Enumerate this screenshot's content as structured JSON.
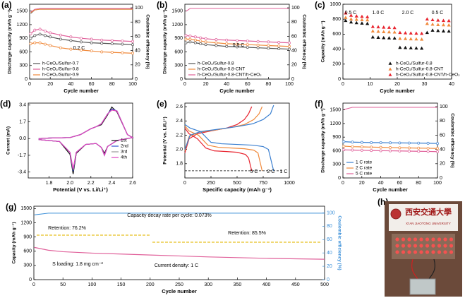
{
  "chart_data": [
    {
      "type": "line",
      "label": "(a)",
      "xlabel": "Cycle number",
      "ylabel": "Discharge capacity (mAh g⁻¹)",
      "y2label": "Coulombic efficiency (%)",
      "xlim": [
        0,
        100
      ],
      "xticks": [
        0,
        20,
        40,
        60,
        80,
        100
      ],
      "ylim": [
        0,
        1650
      ],
      "yticks": [
        0,
        300,
        600,
        900,
        1200,
        1500
      ],
      "y2lim": [
        0,
        105
      ],
      "y2ticks": [
        0,
        20,
        40,
        60,
        80,
        100
      ],
      "legend": "lower left",
      "annotations": [
        "0.2 C"
      ],
      "x": [
        1,
        5,
        10,
        15,
        20,
        30,
        40,
        50,
        60,
        70,
        80,
        90,
        100
      ],
      "series": [
        {
          "name": "h-CeO₂/Sulfur-0.7",
          "color": "#555555",
          "marker": "circle",
          "values": [
            900,
            960,
            990,
            960,
            930,
            880,
            850,
            820,
            800,
            790,
            780,
            770,
            760
          ]
        },
        {
          "name": "h-CeO₂/Sulfur-0.8",
          "color": "#e0609a",
          "marker": "circle",
          "values": [
            1000,
            1080,
            1100,
            1060,
            1020,
            970,
            930,
            900,
            880,
            860,
            850,
            840,
            830
          ]
        },
        {
          "name": "h-CeO₂/Sulfur-0.9",
          "color": "#f08a3c",
          "marker": "circle",
          "values": [
            780,
            800,
            800,
            770,
            740,
            690,
            660,
            640,
            620,
            600,
            590,
            580,
            570
          ]
        },
        {
          "color": "#555555",
          "axis": "y2",
          "values": [
            92,
            97,
            98,
            98,
            98,
            98,
            98,
            98,
            98,
            98,
            98,
            98,
            98
          ]
        },
        {
          "color": "#e0609a",
          "axis": "y2",
          "values": [
            94,
            98,
            99,
            99,
            99,
            99,
            99,
            99,
            99,
            99,
            99,
            99,
            99
          ]
        },
        {
          "color": "#f08a3c",
          "axis": "y2",
          "values": [
            93,
            97,
            98,
            98,
            98,
            98,
            98,
            98,
            98,
            98,
            98,
            98,
            98
          ]
        }
      ]
    },
    {
      "type": "line",
      "label": "(b)",
      "xlabel": "Cycle number",
      "ylabel": "Discharge capacity (mAh g⁻¹)",
      "y2label": "Coulombic efficiency (%)",
      "xlim": [
        0,
        100
      ],
      "xticks": [
        0,
        20,
        40,
        60,
        80,
        100
      ],
      "ylim": [
        0,
        1650
      ],
      "yticks": [
        0,
        300,
        600,
        900,
        1200,
        1500
      ],
      "y2lim": [
        0,
        105
      ],
      "y2ticks": [
        0,
        20,
        40,
        60,
        80,
        100
      ],
      "legend": "lower left",
      "annotations": [
        "0.5 C"
      ],
      "x": [
        1,
        5,
        10,
        15,
        20,
        30,
        40,
        50,
        60,
        70,
        80,
        90,
        100
      ],
      "series": [
        {
          "name": "h-CeO₂/Sulfur-0.8",
          "color": "#555555",
          "marker": "circle",
          "values": [
            800,
            820,
            800,
            780,
            760,
            740,
            720,
            710,
            700,
            690,
            680,
            670,
            660
          ]
        },
        {
          "name": "h-CeO₂/Sulfur-0.8-CNT",
          "color": "#f08a3c",
          "marker": "circle",
          "values": [
            880,
            880,
            860,
            840,
            820,
            800,
            780,
            770,
            760,
            750,
            740,
            730,
            720
          ]
        },
        {
          "name": "h-CeO₂/Sulfur-0.8-CNT/h-CeO₂",
          "color": "#e0609a",
          "marker": "circle",
          "values": [
            960,
            950,
            930,
            910,
            890,
            870,
            860,
            850,
            840,
            830,
            820,
            810,
            800
          ]
        },
        {
          "color": "#e0609a",
          "axis": "y2",
          "values": [
            95,
            99,
            99,
            99,
            99,
            99,
            99,
            99,
            99,
            99,
            99,
            99,
            99
          ]
        }
      ]
    },
    {
      "type": "line",
      "label": "(c)",
      "xlabel": "Cycle number",
      "ylabel": "Capacity (mAh g⁻¹)",
      "xlim": [
        0,
        40
      ],
      "xticks": [
        0,
        10,
        20,
        30,
        40
      ],
      "ylim": [
        0,
        1000
      ],
      "yticks": [
        0,
        200,
        400,
        600,
        800,
        1000
      ],
      "legend": "lower right",
      "annotations": [
        "0.5 C",
        "1.0 C",
        "2.0 C",
        "0.5 C"
      ],
      "x": [
        1,
        3,
        5,
        7,
        9,
        11,
        13,
        15,
        17,
        19,
        21,
        23,
        25,
        27,
        29,
        31,
        33,
        35,
        37,
        39
      ],
      "series": [
        {
          "name": "h-CeO₂/Sulfur-0.8",
          "color": "#111111",
          "marker": "triangle",
          "values": [
            780,
            760,
            750,
            745,
            740,
            560,
            555,
            550,
            548,
            545,
            420,
            418,
            415,
            412,
            410,
            620,
            650,
            645,
            640,
            638
          ]
        },
        {
          "name": "h-CeO₂/Sulfur-0.8-CNT",
          "color": "#f08a3c",
          "marker": "triangle",
          "values": [
            820,
            800,
            795,
            790,
            788,
            640,
            635,
            630,
            628,
            625,
            540,
            538,
            535,
            533,
            530,
            740,
            730,
            725,
            722,
            720
          ]
        },
        {
          "name": "h-CeO₂/Sulfur-0.8-CNT/h-CeO₂",
          "color": "#e8242f",
          "marker": "triangle",
          "values": [
            880,
            850,
            840,
            835,
            830,
            700,
            695,
            690,
            688,
            685,
            620,
            615,
            612,
            610,
            608,
            800,
            790,
            785,
            780,
            778
          ]
        }
      ]
    },
    {
      "type": "line",
      "label": "(d)",
      "xlabel": "Potential (V vs. Li/Li⁺)",
      "ylabel": "Current (mA)",
      "xlim": [
        1.6,
        2.6
      ],
      "xticks": [
        1.8,
        {
          "value": 2,
          "label": "2.0"
        },
        2.2,
        2.4,
        2.6
      ],
      "ylim": [
        -4,
        3.6
      ],
      "yticks": [
        -3.4,
        -1.7,
        {
          "value": 0,
          "label": "0.0"
        },
        1.7,
        3.4
      ],
      "legend": "center right",
      "series": [
        {
          "name": "1st",
          "color": "#111111",
          "x": [
            1.7,
            1.9,
            2.0,
            2.03,
            2.06,
            2.15,
            2.25,
            2.3,
            2.33,
            2.36,
            2.45,
            2.55,
            2.6,
            2.55,
            2.45,
            2.4,
            2.36,
            2.3,
            2.25,
            2.2,
            2.1,
            2.0,
            1.8,
            1.7
          ],
          "values": [
            -0.1,
            -0.3,
            -1.6,
            -3.6,
            -1.5,
            -0.6,
            -0.5,
            -0.9,
            -1.5,
            -0.8,
            -0.2,
            0.0,
            0.1,
            0.4,
            2.7,
            3.2,
            2.4,
            1.4,
            1.2,
            1.0,
            0.4,
            0.1,
            0.05,
            0.0
          ]
        },
        {
          "name": "2nd",
          "color": "#3050d0",
          "x": [
            1.7,
            1.9,
            2.0,
            2.03,
            2.06,
            2.15,
            2.25,
            2.3,
            2.33,
            2.36,
            2.45,
            2.55,
            2.6,
            2.55,
            2.45,
            2.4,
            2.36,
            2.3,
            2.25,
            2.2,
            2.1,
            2.0,
            1.8,
            1.7
          ],
          "values": [
            -0.1,
            -0.3,
            -1.4,
            -3.3,
            -1.4,
            -0.6,
            -0.5,
            -0.9,
            -1.7,
            -0.8,
            -0.2,
            0.0,
            0.1,
            0.4,
            2.8,
            3.0,
            2.5,
            1.5,
            1.2,
            1.0,
            0.4,
            0.1,
            0.05,
            0.0
          ]
        },
        {
          "name": "3rd",
          "color": "#999999",
          "x": [
            1.7,
            1.9,
            2.0,
            2.03,
            2.06,
            2.15,
            2.25,
            2.3,
            2.33,
            2.36,
            2.45,
            2.55,
            2.6,
            2.55,
            2.45,
            2.4,
            2.36,
            2.3,
            2.25,
            2.2,
            2.1,
            2.0,
            1.8,
            1.7
          ],
          "values": [
            -0.1,
            -0.3,
            -1.4,
            -3.2,
            -1.4,
            -0.6,
            -0.5,
            -0.9,
            -1.7,
            -0.8,
            -0.2,
            0.0,
            0.1,
            0.4,
            2.8,
            2.9,
            2.5,
            1.5,
            1.2,
            1.0,
            0.4,
            0.1,
            0.05,
            0.0
          ]
        },
        {
          "name": "4th",
          "color": "#e040c0",
          "x": [
            1.7,
            1.9,
            2.0,
            2.03,
            2.06,
            2.15,
            2.25,
            2.3,
            2.33,
            2.36,
            2.45,
            2.55,
            2.6,
            2.55,
            2.45,
            2.4,
            2.36,
            2.3,
            2.25,
            2.2,
            2.1,
            2.0,
            1.8,
            1.7
          ],
          "values": [
            -0.1,
            -0.3,
            -1.4,
            -3.1,
            -1.4,
            -0.6,
            -0.5,
            -0.9,
            -1.7,
            -0.8,
            -0.2,
            0.0,
            0.1,
            0.4,
            2.8,
            2.9,
            2.5,
            1.5,
            1.2,
            1.0,
            0.4,
            0.1,
            0.05,
            0.0
          ]
        }
      ]
    },
    {
      "type": "line",
      "label": "(e)",
      "xlabel": "Specific capacity (mAh g⁻¹)",
      "ylabel": "Potential (V vs. Li/Li⁺)",
      "xlim": [
        0,
        1000
      ],
      "xticks": [
        0,
        250,
        500,
        750,
        1000
      ],
      "ylim": [
        1.6,
        2.65
      ],
      "yticks": [
        1.8,
        {
          "value": 2,
          "label": "2.0"
        },
        2.2,
        2.4,
        2.6
      ],
      "hline": 1.7,
      "annotations": [
        "5 C",
        "2 C",
        "1 C"
      ],
      "series": [
        {
          "color": "#e8242f",
          "x": [
            0,
            40,
            120,
            200,
            280,
            400,
            500,
            580,
            610,
            640
          ],
          "values": [
            2.3,
            2.22,
            2.15,
            2.02,
            1.98,
            1.97,
            1.96,
            1.93,
            1.88,
            1.7
          ]
        },
        {
          "color": "#e8242f",
          "x": [
            0,
            40,
            120,
            250,
            400,
            500,
            570,
            610,
            640
          ],
          "values": [
            1.95,
            2.15,
            2.22,
            2.26,
            2.3,
            2.35,
            2.42,
            2.5,
            2.6
          ]
        },
        {
          "color": "#f08a3c",
          "x": [
            0,
            40,
            130,
            220,
            320,
            450,
            570,
            660,
            700,
            740
          ],
          "values": [
            2.33,
            2.26,
            2.2,
            2.06,
            2.03,
            2.02,
            2.01,
            1.99,
            1.95,
            1.7
          ]
        },
        {
          "color": "#f08a3c",
          "x": [
            0,
            40,
            130,
            280,
            450,
            570,
            660,
            710,
            740
          ],
          "values": [
            1.98,
            2.18,
            2.24,
            2.27,
            2.31,
            2.35,
            2.42,
            2.5,
            2.6
          ]
        },
        {
          "color": "#3a7fd0",
          "x": [
            0,
            50,
            150,
            250,
            350,
            500,
            650,
            750,
            800,
            850
          ],
          "values": [
            2.35,
            2.3,
            2.25,
            2.1,
            2.08,
            2.07,
            2.06,
            2.04,
            2.0,
            1.7
          ]
        },
        {
          "color": "#3a7fd0",
          "x": [
            0,
            50,
            150,
            300,
            500,
            650,
            750,
            820,
            850
          ],
          "values": [
            2.0,
            2.2,
            2.25,
            2.28,
            2.32,
            2.36,
            2.42,
            2.5,
            2.62
          ]
        }
      ]
    },
    {
      "type": "line",
      "label": "(f)",
      "xlabel": "Cycle number",
      "ylabel": "Discharge capacity (mAh g⁻¹)",
      "y2label": "Coulombic efficiency (%)",
      "xlim": [
        0,
        100
      ],
      "xticks": [
        0,
        20,
        40,
        60,
        80,
        100
      ],
      "ylim": [
        0,
        1650
      ],
      "yticks": [
        0,
        300,
        600,
        900,
        1200,
        1500
      ],
      "y2lim": [
        0,
        105
      ],
      "y2ticks": [
        0,
        20,
        40,
        60,
        80,
        100
      ],
      "legend": "lower left",
      "x": [
        1,
        10,
        20,
        30,
        40,
        50,
        60,
        70,
        80,
        90,
        100
      ],
      "series": [
        {
          "name": "1 C rate",
          "color": "#3a7fd0",
          "marker": "circle",
          "values": [
            800,
            790,
            785,
            780,
            778,
            775,
            772,
            770,
            768,
            765,
            760
          ]
        },
        {
          "name": "2 C rate",
          "color": "#f08a3c",
          "marker": "circle",
          "values": [
            700,
            690,
            685,
            680,
            675,
            670,
            665,
            662,
            658,
            655,
            650
          ]
        },
        {
          "name": "5 C rate",
          "color": "#e0609a",
          "marker": "circle",
          "values": [
            620,
            615,
            610,
            605,
            600,
            598,
            595,
            592,
            588,
            585,
            580
          ]
        },
        {
          "color": "#e0609a",
          "axis": "y2",
          "values": [
            96,
            99,
            99,
            99,
            99,
            99,
            99,
            99,
            99,
            99,
            99
          ]
        }
      ]
    },
    {
      "type": "line",
      "label": "(g)",
      "xlabel": "Cycle number",
      "ylabel": "Capacity (mAh g⁻¹)",
      "y2label": "Coulombic efficiency (%)",
      "xlim": [
        0,
        500
      ],
      "xticks": [
        0,
        50,
        100,
        150,
        200,
        250,
        300,
        350,
        400,
        450,
        500
      ],
      "ylim": [
        0,
        1550
      ],
      "yticks": [
        0,
        300,
        600,
        900,
        1200,
        1500
      ],
      "y2lim": [
        0,
        110
      ],
      "y2ticks": [
        0,
        20,
        40,
        60,
        80,
        100
      ],
      "y2color": "#3a8fd8",
      "annotations": [
        "Capacity decay rate per cycle: 0.073%",
        "Retention: 76.2%",
        "Retention: 85.5%",
        "S loading: 1.8 mg cm⁻²",
        "Current density: 1 C"
      ],
      "x": [
        1,
        25,
        50,
        100,
        150,
        200,
        250,
        300,
        350,
        400,
        450,
        500
      ],
      "series": [
        {
          "color": "#e0609a",
          "values": [
            680,
            620,
            590,
            560,
            540,
            520,
            500,
            480,
            465,
            450,
            440,
            430
          ]
        },
        {
          "color": "#3a8fd8",
          "axis": "y2",
          "values": [
            97,
            99.5,
            99.5,
            99.5,
            99.5,
            99.5,
            99.5,
            99.5,
            99.5,
            99.5,
            99.5,
            99.5
          ]
        }
      ]
    },
    {
      "type": "image",
      "label": "(h)",
      "title": "西安交通大學",
      "subtitle": "XI'AN JIAOTONG UNIVERSITY"
    }
  ]
}
